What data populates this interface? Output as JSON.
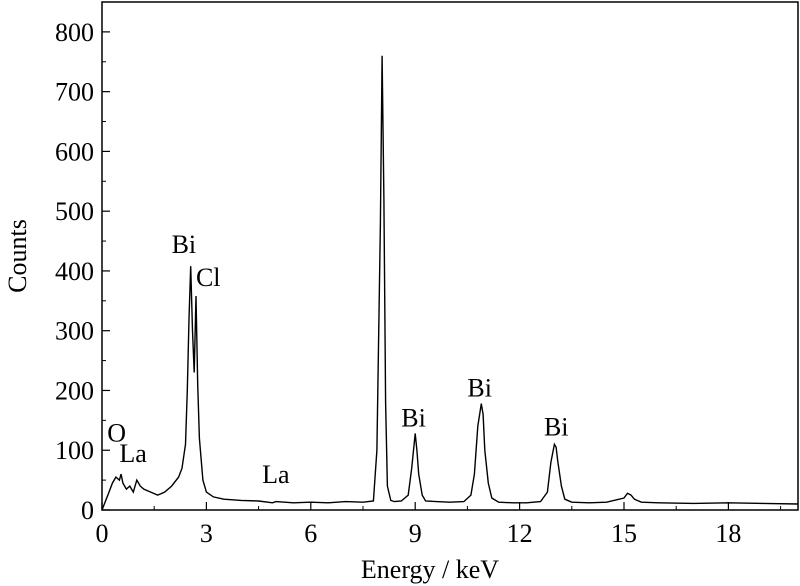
{
  "chart_data": {
    "type": "line",
    "title": "",
    "xlabel": "Energy  / keV",
    "ylabel": "Counts",
    "xlim": [
      0,
      20
    ],
    "ylim": [
      0,
      850
    ],
    "x_ticks": [
      0,
      3,
      6,
      9,
      12,
      15,
      18
    ],
    "y_ticks": [
      0,
      100,
      200,
      300,
      400,
      500,
      600,
      700,
      800
    ],
    "grid": false,
    "series": [
      {
        "x": [
          0.0,
          0.2,
          0.3,
          0.4,
          0.5,
          0.55,
          0.6,
          0.7,
          0.8,
          0.9,
          1.0,
          1.1,
          1.2,
          1.4,
          1.6,
          1.8,
          2.0,
          2.2,
          2.3,
          2.4,
          2.45,
          2.5,
          2.55,
          2.6,
          2.65,
          2.7,
          2.75,
          2.8,
          2.9,
          3.0,
          3.2,
          3.5,
          4.0,
          4.5,
          4.9,
          5.0,
          5.5,
          6.0,
          6.5,
          7.0,
          7.5,
          7.8,
          7.9,
          8.0,
          8.05,
          8.1,
          8.15,
          8.2,
          8.3,
          8.4,
          8.6,
          8.8,
          8.9,
          9.0,
          9.05,
          9.1,
          9.2,
          9.3,
          9.6,
          10.0,
          10.4,
          10.6,
          10.7,
          10.8,
          10.9,
          10.95,
          11.0,
          11.1,
          11.2,
          11.4,
          11.8,
          12.2,
          12.6,
          12.8,
          12.9,
          13.0,
          13.05,
          13.1,
          13.2,
          13.3,
          13.5,
          14.0,
          14.5,
          15.0,
          15.1,
          15.2,
          15.3,
          15.5,
          16.0,
          17.0,
          18.0,
          19.0,
          20.0
        ],
        "y": [
          0,
          30,
          45,
          55,
          50,
          60,
          45,
          35,
          40,
          30,
          50,
          40,
          35,
          30,
          25,
          30,
          40,
          55,
          70,
          110,
          200,
          320,
          408,
          300,
          230,
          358,
          210,
          120,
          50,
          30,
          22,
          18,
          16,
          15,
          12,
          14,
          12,
          13,
          12,
          14,
          13,
          15,
          100,
          480,
          760,
          520,
          180,
          40,
          16,
          14,
          15,
          25,
          70,
          128,
          100,
          60,
          25,
          15,
          14,
          13,
          14,
          25,
          60,
          140,
          178,
          160,
          100,
          45,
          20,
          13,
          12,
          12,
          14,
          30,
          80,
          110,
          105,
          80,
          40,
          18,
          13,
          12,
          13,
          20,
          28,
          25,
          18,
          13,
          12,
          11,
          12,
          11,
          10
        ]
      }
    ],
    "annotations": [
      {
        "text": "O",
        "x": 0.15,
        "y": 115
      },
      {
        "text": "La",
        "x": 0.5,
        "y": 80
      },
      {
        "text": "Bi",
        "x": 2.0,
        "y": 430
      },
      {
        "text": "Cl",
        "x": 2.7,
        "y": 375
      },
      {
        "text": "La",
        "x": 4.6,
        "y": 45
      },
      {
        "text": "Bi",
        "x": 8.6,
        "y": 140
      },
      {
        "text": "Bi",
        "x": 10.5,
        "y": 190
      },
      {
        "text": "Bi",
        "x": 12.7,
        "y": 125
      }
    ]
  }
}
